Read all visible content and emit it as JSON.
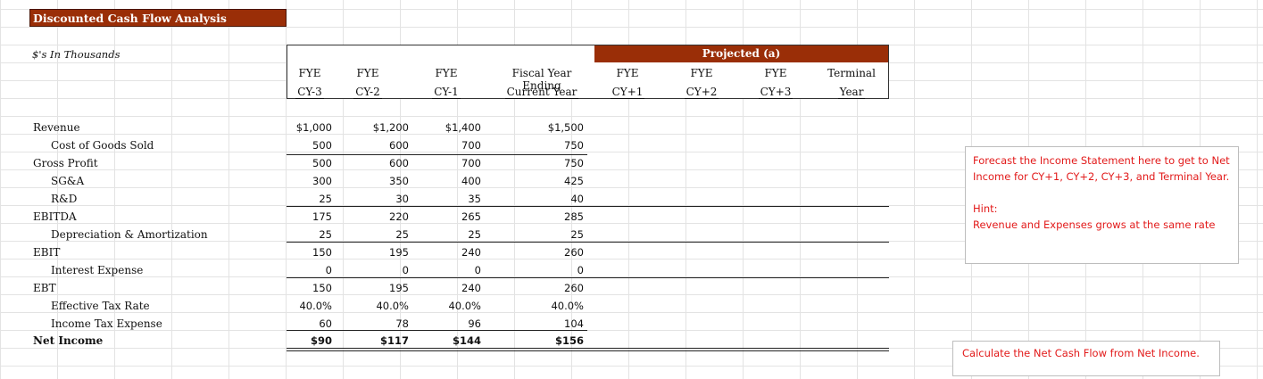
{
  "sheet": {
    "title": "Discounted Cash Flow Analysis",
    "units": "$'s In Thousands",
    "projected_label": "Projected (a)"
  },
  "columns": [
    {
      "line1": "FYE",
      "line2": "CY-3"
    },
    {
      "line1": "FYE",
      "line2": "CY-2"
    },
    {
      "line1": "FYE",
      "line2": "CY-1"
    },
    {
      "line1": "Fiscal Year Ending",
      "line2": "Current Year"
    },
    {
      "line1": "FYE",
      "line2": "CY+1"
    },
    {
      "line1": "FYE",
      "line2": "CY+2"
    },
    {
      "line1": "FYE",
      "line2": "CY+3"
    },
    {
      "line1": "Terminal",
      "line2": "Year"
    }
  ],
  "rows": [
    {
      "label": "Revenue",
      "values": [
        "$1,000",
        "$1,200",
        "$1,400",
        "$1,500"
      ]
    },
    {
      "label": "Cost of Goods Sold",
      "values": [
        "500",
        "600",
        "700",
        "750"
      ]
    },
    {
      "label": "Gross Profit",
      "values": [
        "500",
        "600",
        "700",
        "750"
      ]
    },
    {
      "label": "SG&A",
      "values": [
        "300",
        "350",
        "400",
        "425"
      ]
    },
    {
      "label": "R&D",
      "values": [
        "25",
        "30",
        "35",
        "40"
      ]
    },
    {
      "label": "EBITDA",
      "values": [
        "175",
        "220",
        "265",
        "285"
      ]
    },
    {
      "label": "Depreciation & Amortization",
      "values": [
        "25",
        "25",
        "25",
        "25"
      ]
    },
    {
      "label": "EBIT",
      "values": [
        "150",
        "195",
        "240",
        "260"
      ]
    },
    {
      "label": "Interest Expense",
      "values": [
        "0",
        "0",
        "0",
        "0"
      ]
    },
    {
      "label": "EBT",
      "values": [
        "150",
        "195",
        "240",
        "260"
      ]
    },
    {
      "label": "Effective Tax Rate",
      "values": [
        "40.0%",
        "40.0%",
        "40.0%",
        "40.0%"
      ]
    },
    {
      "label": "Income Tax Expense",
      "values": [
        "60",
        "78",
        "96",
        "104"
      ]
    },
    {
      "label": "Net Income",
      "values": [
        "$90",
        "$117",
        "$144",
        "$156"
      ]
    }
  ],
  "notes": {
    "forecast": "Forecast the Income Statement here to get to Net Income for CY+1, CY+2, CY+3, and Terminal Year.",
    "hint_title": "Hint:",
    "hint_text": "Revenue and Expenses grows at the same rate",
    "cashflow": "Calculate the Net Cash Flow from Net Income."
  }
}
